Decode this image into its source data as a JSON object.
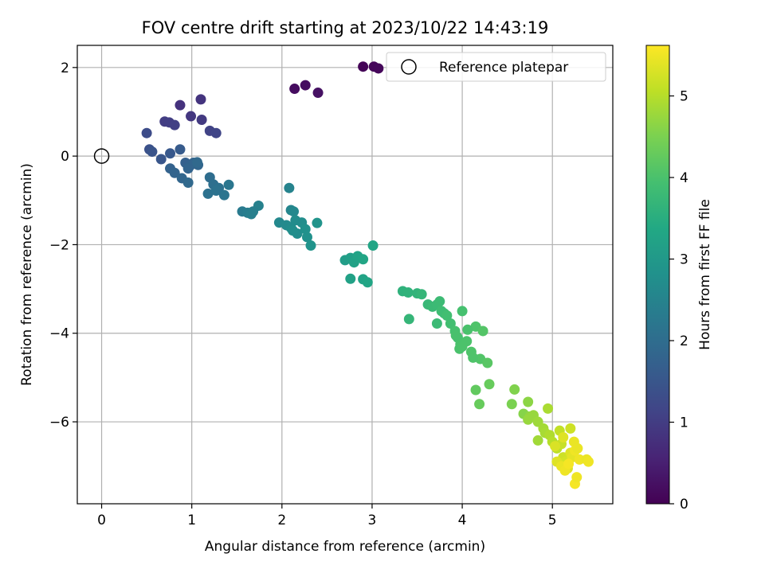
{
  "chart_data": {
    "type": "scatter",
    "title": "FOV centre drift starting at 2023/10/22 14:43:19",
    "xlabel": "Angular distance from reference (arcmin)",
    "ylabel": "Rotation from reference (arcmin)",
    "xlim": [
      -0.27,
      5.67
    ],
    "ylim": [
      -7.85,
      2.5
    ],
    "xticks": [
      0,
      1,
      2,
      3,
      4,
      5
    ],
    "yticks": [
      -6,
      -4,
      -2,
      0,
      2
    ],
    "xtick_labels": [
      "0",
      "1",
      "2",
      "3",
      "4",
      "5"
    ],
    "ytick_labels": [
      "−6",
      "−4",
      "−2",
      "0",
      "2"
    ],
    "grid": true,
    "legend": {
      "position": "top-right",
      "label": "Reference platepar"
    },
    "reference_point": {
      "x": 0,
      "y": 0
    },
    "colorbar": {
      "label": "Hours from first FF file",
      "range": [
        0,
        5.62
      ],
      "ticks": [
        0,
        1,
        2,
        3,
        4,
        5
      ],
      "tick_labels": [
        "0",
        "1",
        "2",
        "3",
        "4",
        "5"
      ],
      "colormap": "viridis"
    },
    "points": [
      [
        2.9,
        2.02,
        0.05
      ],
      [
        3.02,
        2.02,
        0.08
      ],
      [
        3.07,
        1.98,
        0.1
      ],
      [
        2.14,
        1.52,
        0.18
      ],
      [
        2.26,
        1.6,
        0.2
      ],
      [
        2.4,
        1.43,
        0.25
      ],
      [
        0.87,
        1.15,
        0.8
      ],
      [
        1.1,
        1.28,
        0.85
      ],
      [
        0.99,
        0.9,
        0.9
      ],
      [
        1.11,
        0.82,
        0.95
      ],
      [
        0.7,
        0.78,
        1.0
      ],
      [
        0.75,
        0.76,
        1.02
      ],
      [
        0.81,
        0.7,
        1.05
      ],
      [
        1.2,
        0.57,
        1.1
      ],
      [
        1.27,
        0.52,
        1.15
      ],
      [
        0.5,
        0.52,
        1.3
      ],
      [
        0.53,
        0.15,
        1.4
      ],
      [
        0.56,
        0.1,
        1.45
      ],
      [
        0.66,
        -0.07,
        1.5
      ],
      [
        0.76,
        0.06,
        1.55
      ],
      [
        0.87,
        0.15,
        1.6
      ],
      [
        0.93,
        -0.15,
        1.7
      ],
      [
        0.98,
        -0.22,
        1.75
      ],
      [
        1.02,
        -0.15,
        1.8
      ],
      [
        1.07,
        -0.2,
        1.85
      ],
      [
        0.96,
        -0.28,
        1.8
      ],
      [
        0.76,
        -0.28,
        1.75
      ],
      [
        0.81,
        -0.38,
        1.8
      ],
      [
        0.89,
        -0.5,
        1.85
      ],
      [
        0.96,
        -0.6,
        1.9
      ],
      [
        1.06,
        -0.14,
        1.9
      ],
      [
        1.2,
        -0.48,
        2.0
      ],
      [
        1.24,
        -0.64,
        2.05
      ],
      [
        1.3,
        -0.72,
        2.1
      ],
      [
        1.36,
        -0.88,
        2.15
      ],
      [
        1.41,
        -0.65,
        2.2
      ],
      [
        1.18,
        -0.85,
        2.1
      ],
      [
        1.27,
        -0.78,
        2.12
      ],
      [
        1.56,
        -1.25,
        2.3
      ],
      [
        1.62,
        -1.28,
        2.35
      ],
      [
        1.66,
        -1.31,
        2.4
      ],
      [
        1.74,
        -1.12,
        2.45
      ],
      [
        1.68,
        -1.25,
        2.4
      ],
      [
        2.08,
        -0.72,
        2.5
      ],
      [
        2.1,
        -1.22,
        2.55
      ],
      [
        2.13,
        -1.25,
        2.6
      ],
      [
        1.97,
        -1.5,
        2.6
      ],
      [
        2.05,
        -1.56,
        2.65
      ],
      [
        2.1,
        -1.62,
        2.7
      ],
      [
        2.17,
        -1.75,
        2.72
      ],
      [
        2.22,
        -1.5,
        2.75
      ],
      [
        2.26,
        -1.65,
        2.8
      ],
      [
        2.28,
        -1.83,
        2.82
      ],
      [
        2.32,
        -2.02,
        2.85
      ],
      [
        2.39,
        -1.51,
        2.88
      ],
      [
        2.15,
        -1.45,
        2.7
      ],
      [
        2.12,
        -1.68,
        2.75
      ],
      [
        2.7,
        -2.35,
        3.1
      ],
      [
        2.76,
        -2.3,
        3.15
      ],
      [
        2.8,
        -2.4,
        3.2
      ],
      [
        2.84,
        -2.26,
        3.25
      ],
      [
        2.9,
        -2.33,
        3.3
      ],
      [
        3.01,
        -2.02,
        3.3
      ],
      [
        2.76,
        -2.77,
        3.2
      ],
      [
        2.9,
        -2.78,
        3.25
      ],
      [
        2.95,
        -2.85,
        3.3
      ],
      [
        3.34,
        -3.05,
        3.6
      ],
      [
        3.4,
        -3.08,
        3.62
      ],
      [
        3.5,
        -3.1,
        3.65
      ],
      [
        3.55,
        -3.12,
        3.7
      ],
      [
        3.62,
        -3.35,
        3.75
      ],
      [
        3.67,
        -3.4,
        3.78
      ],
      [
        3.72,
        -3.35,
        3.8
      ],
      [
        3.75,
        -3.28,
        3.82
      ],
      [
        3.77,
        -3.5,
        3.85
      ],
      [
        3.8,
        -3.55,
        3.85
      ],
      [
        3.83,
        -3.6,
        3.9
      ],
      [
        3.87,
        -3.78,
        3.9
      ],
      [
        3.92,
        -3.95,
        3.95
      ],
      [
        3.95,
        -4.1,
        3.95
      ],
      [
        3.98,
        -4.25,
        4.0
      ],
      [
        4.0,
        -3.5,
        3.95
      ],
      [
        4.05,
        -4.18,
        4.02
      ],
      [
        4.1,
        -4.42,
        4.05
      ],
      [
        4.15,
        -3.85,
        4.05
      ],
      [
        4.2,
        -4.58,
        4.08
      ],
      [
        4.23,
        -3.95,
        4.1
      ],
      [
        3.41,
        -3.68,
        3.7
      ],
      [
        3.72,
        -3.78,
        3.8
      ],
      [
        3.97,
        -4.35,
        4.0
      ],
      [
        4.0,
        -4.3,
        4.02
      ],
      [
        3.93,
        -4.05,
        3.98
      ],
      [
        4.12,
        -4.55,
        4.05
      ],
      [
        4.06,
        -3.92,
        4.0
      ],
      [
        4.28,
        -4.67,
        4.15
      ],
      [
        4.15,
        -5.28,
        4.25
      ],
      [
        4.19,
        -5.6,
        4.3
      ],
      [
        4.3,
        -5.15,
        4.3
      ],
      [
        4.55,
        -5.6,
        4.5
      ],
      [
        4.58,
        -5.27,
        4.55
      ],
      [
        4.68,
        -5.82,
        4.6
      ],
      [
        4.73,
        -5.55,
        4.65
      ],
      [
        4.75,
        -5.88,
        4.7
      ],
      [
        4.79,
        -5.85,
        4.75
      ],
      [
        4.73,
        -5.95,
        4.75
      ],
      [
        4.84,
        -6.0,
        4.8
      ],
      [
        4.84,
        -6.42,
        4.82
      ],
      [
        4.9,
        -6.15,
        4.85
      ],
      [
        4.92,
        -6.25,
        4.88
      ],
      [
        4.95,
        -5.7,
        4.9
      ],
      [
        4.97,
        -6.3,
        4.95
      ],
      [
        5.0,
        -6.45,
        5.0
      ],
      [
        5.05,
        -6.6,
        5.05
      ],
      [
        5.08,
        -6.2,
        5.1
      ],
      [
        5.1,
        -6.5,
        5.15
      ],
      [
        5.12,
        -6.8,
        5.2
      ],
      [
        5.15,
        -6.9,
        5.25
      ],
      [
        5.17,
        -7.05,
        5.3
      ],
      [
        5.2,
        -6.15,
        5.2
      ],
      [
        5.2,
        -6.7,
        5.35
      ],
      [
        5.22,
        -6.8,
        5.4
      ],
      [
        5.24,
        -6.45,
        5.45
      ],
      [
        5.25,
        -7.4,
        5.55
      ],
      [
        5.27,
        -7.25,
        5.5
      ],
      [
        5.3,
        -6.85,
        5.5
      ],
      [
        5.38,
        -6.85,
        5.45
      ],
      [
        5.4,
        -6.9,
        5.5
      ],
      [
        5.05,
        -6.9,
        5.35
      ],
      [
        5.1,
        -7.0,
        5.45
      ],
      [
        5.14,
        -7.1,
        5.5
      ],
      [
        5.18,
        -6.95,
        5.55
      ],
      [
        5.25,
        -6.65,
        5.5
      ],
      [
        5.28,
        -6.6,
        5.45
      ],
      [
        5.12,
        -6.35,
        5.35
      ],
      [
        5.03,
        -6.55,
        5.3
      ]
    ]
  }
}
